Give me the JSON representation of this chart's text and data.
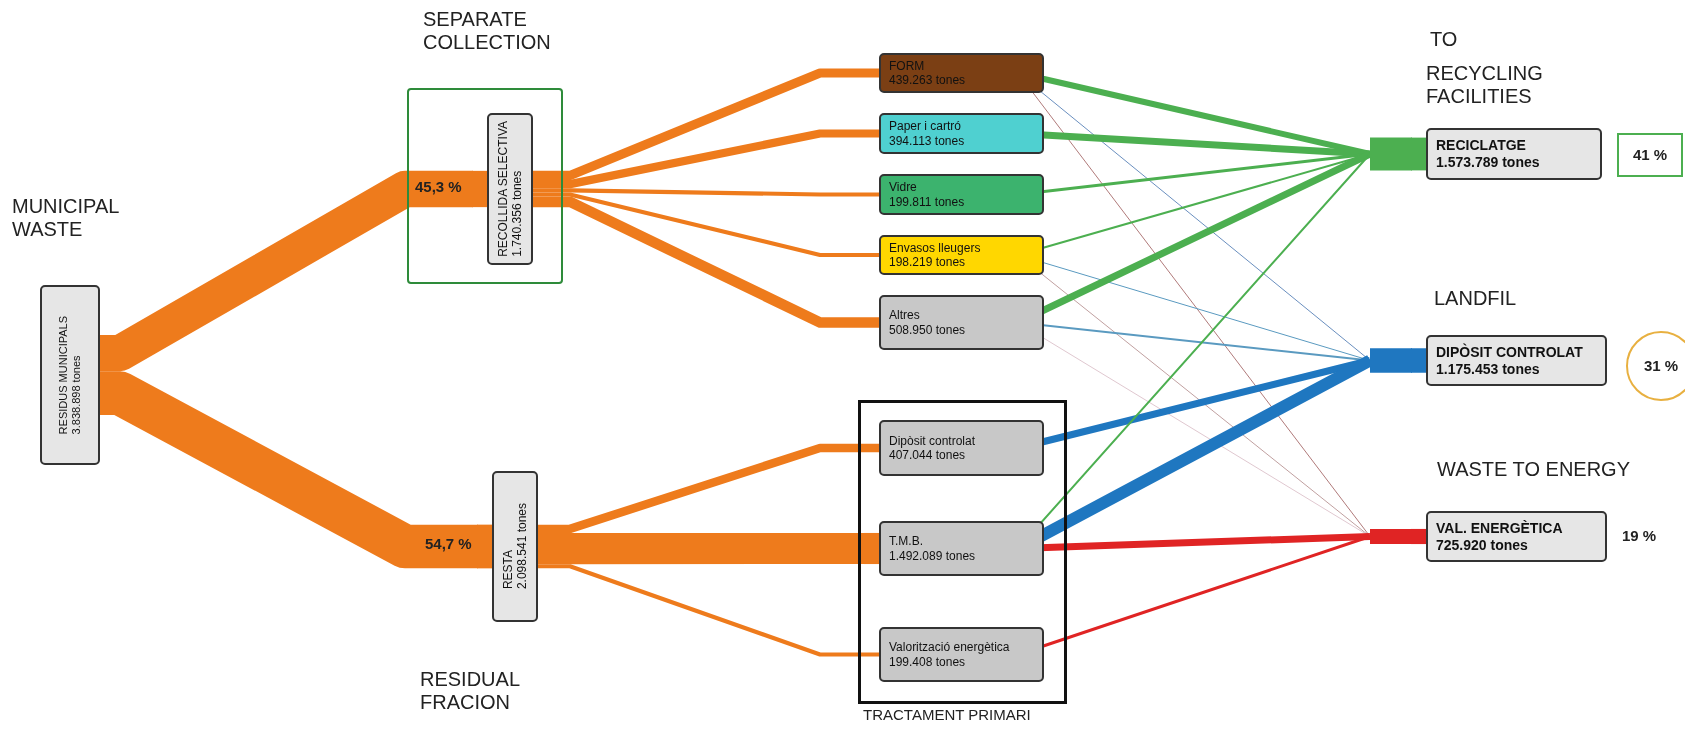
{
  "chart_data": {
    "type": "other",
    "categories": [
      "RESIDUS MUNICIPALS",
      "RECOLLIDA SELECTIVA",
      "RESTA",
      "FORM",
      "Paper i cartró",
      "Vidre",
      "Envasos lleugers",
      "Altres",
      "Dipòsit controlat",
      "T.M.B.",
      "Valorització energètica",
      "RECICLATGE",
      "DIPÒSIT CONTROLAT",
      "VAL. ENERGÈTICA"
    ],
    "values": [
      3838898,
      1740356,
      2098541,
      439263,
      394113,
      199811,
      198219,
      508950,
      407044,
      1492089,
      199408,
      1573789,
      1175453,
      725920
    ],
    "value_labels": [
      "3.838.898 tones",
      "1.740.356 tones",
      "2.098.541 tones",
      "439.263 tones",
      "394.113 tones",
      "199.811 tones",
      "198.219 tones",
      "508.950 tones",
      "407.044 tones",
      "1.492.089 tones",
      "199.408 tones",
      "1.573.789 tones",
      "1.175.453 tones",
      "725.920 tones"
    ],
    "colors": [
      "#e6e6e6",
      "#e6e6e6",
      "#e6e6e6",
      "#7b3f14",
      "#4fd0d0",
      "#3cb36e",
      "#ffd700",
      "#c8c8c8",
      "#c8c8c8",
      "#c8c8c8",
      "#c8c8c8",
      "#e6e6e6",
      "#e6e6e6",
      "#e6e6e6"
    ],
    "annotations": [
      "MUNICIPAL WASTE",
      "SEPARATE COLLECTION",
      "RESIDUAL FRACION",
      "TRACTAMENT PRIMARI",
      "TO",
      "RECYCLING FACILITIES",
      "LANDFIL",
      "WASTE TO ENERGY",
      "45,3 %",
      "54,7 %",
      "41 %",
      "31 %",
      "19 %"
    ]
  }
}
